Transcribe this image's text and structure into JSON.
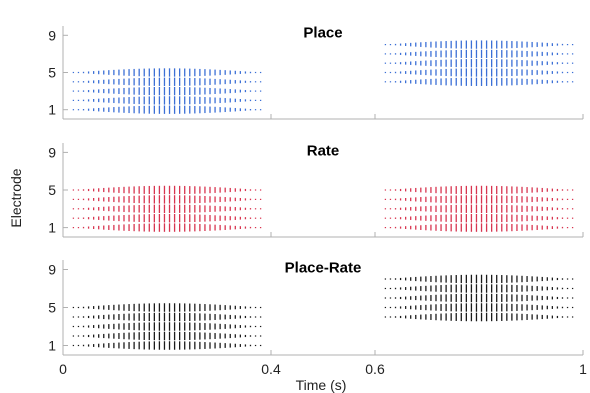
{
  "chart_data": {
    "type": "raster",
    "ylabel": "Electrode",
    "xlabel": "Time (s)",
    "xlim": [
      0,
      1
    ],
    "xticks": [
      "0",
      "0.4",
      "0.6",
      "1"
    ],
    "xtick_values": [
      0,
      0.4,
      0.6,
      1
    ],
    "grid": false,
    "panels": [
      {
        "title": "Place",
        "color": "#3b6fd6",
        "ylim": [
          0,
          10
        ],
        "yticks": [
          "1",
          "5",
          "9"
        ],
        "ytick_values": [
          1,
          5,
          9
        ],
        "segments": [
          {
            "t_start": 0.02,
            "t_end": 0.38,
            "electrodes": [
              1,
              2,
              3,
              4,
              5
            ],
            "peak_time": 0.2
          },
          {
            "t_start": 0.62,
            "t_end": 0.98,
            "electrodes": [
              4,
              5,
              6,
              7,
              8
            ],
            "peak_time": 0.8
          }
        ]
      },
      {
        "title": "Rate",
        "color": "#d8344f",
        "ylim": [
          0,
          10
        ],
        "yticks": [
          "1",
          "5",
          "9"
        ],
        "ytick_values": [
          1,
          5,
          9
        ],
        "segments": [
          {
            "t_start": 0.02,
            "t_end": 0.38,
            "electrodes": [
              1,
              2,
              3,
              4,
              5
            ],
            "peak_time": 0.2
          },
          {
            "t_start": 0.62,
            "t_end": 0.98,
            "electrodes": [
              1,
              2,
              3,
              4,
              5
            ],
            "peak_time": 0.8
          }
        ]
      },
      {
        "title": "Place-Rate",
        "color": "#1a1a1a",
        "ylim": [
          0,
          10
        ],
        "yticks": [
          "1",
          "5",
          "9"
        ],
        "ytick_values": [
          1,
          5,
          9
        ],
        "segments": [
          {
            "t_start": 0.02,
            "t_end": 0.38,
            "electrodes": [
              1,
              2,
              3,
              4,
              5
            ],
            "peak_time": 0.2
          },
          {
            "t_start": 0.62,
            "t_end": 0.98,
            "electrodes": [
              4,
              5,
              6,
              7,
              8
            ],
            "peak_time": 0.8
          }
        ]
      }
    ]
  }
}
